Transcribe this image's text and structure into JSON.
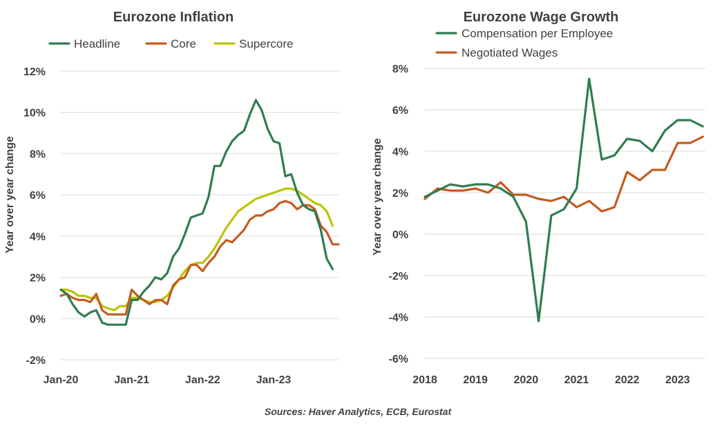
{
  "colors": {
    "green": "#2e7d4f",
    "orange": "#c55a1e",
    "lime": "#b9c400",
    "grid": "#d9d9d9",
    "text": "#404040"
  },
  "source": "Sources: Haver Analytics, ECB, Eurostat",
  "chart_data": [
    {
      "type": "line",
      "title": "Eurozone Inflation",
      "ylabel": "Year over year change",
      "xlabel": "",
      "ylim": [
        -2,
        12
      ],
      "yticks": [
        -2,
        0,
        2,
        4,
        6,
        8,
        10,
        12
      ],
      "ytick_labels": [
        "-2%",
        "0%",
        "2%",
        "4%",
        "6%",
        "8%",
        "10%",
        "12%"
      ],
      "x_ticks": [
        {
          "label": "Jan-20",
          "x": 0
        },
        {
          "label": "Jan-21",
          "x": 12
        },
        {
          "label": "Jan-22",
          "x": 24
        },
        {
          "label": "Jan-23",
          "x": 36
        }
      ],
      "x_unit": "months since Jan-20",
      "xlim": [
        0,
        47
      ],
      "grid": true,
      "legend": "top",
      "series": [
        {
          "name": "Headline",
          "color": "#2e7d4f",
          "x": [
            0,
            1,
            2,
            3,
            4,
            5,
            6,
            7,
            8,
            9,
            10,
            11,
            12,
            13,
            14,
            15,
            16,
            17,
            18,
            19,
            20,
            21,
            22,
            23,
            24,
            25,
            26,
            27,
            28,
            29,
            30,
            31,
            32,
            33,
            34,
            35,
            36,
            37,
            38,
            39,
            40,
            41,
            42,
            43,
            44,
            45,
            46
          ],
          "values": [
            1.4,
            1.2,
            0.7,
            0.3,
            0.1,
            0.3,
            0.4,
            -0.2,
            -0.3,
            -0.3,
            -0.3,
            -0.3,
            0.9,
            0.9,
            1.3,
            1.6,
            2.0,
            1.9,
            2.2,
            3.0,
            3.4,
            4.1,
            4.9,
            5.0,
            5.1,
            5.9,
            7.4,
            7.4,
            8.1,
            8.6,
            8.9,
            9.1,
            9.9,
            10.6,
            10.1,
            9.2,
            8.6,
            8.5,
            6.9,
            7.0,
            6.1,
            5.5,
            5.3,
            5.2,
            4.3,
            2.9,
            2.4
          ]
        },
        {
          "name": "Core",
          "color": "#c55a1e",
          "x": [
            0,
            1,
            2,
            3,
            4,
            5,
            6,
            7,
            8,
            9,
            10,
            11,
            12,
            13,
            14,
            15,
            16,
            17,
            18,
            19,
            20,
            21,
            22,
            23,
            24,
            25,
            26,
            27,
            28,
            29,
            30,
            31,
            32,
            33,
            34,
            35,
            36,
            37,
            38,
            39,
            40,
            41,
            42,
            43,
            44,
            45,
            46,
            47
          ],
          "values": [
            1.1,
            1.2,
            1.0,
            0.9,
            0.9,
            0.8,
            1.2,
            0.4,
            0.2,
            0.2,
            0.2,
            0.2,
            1.4,
            1.1,
            0.9,
            0.7,
            0.9,
            0.9,
            0.7,
            1.6,
            1.9,
            2.0,
            2.6,
            2.6,
            2.3,
            2.7,
            3.0,
            3.5,
            3.8,
            3.7,
            4.0,
            4.3,
            4.8,
            5.0,
            5.0,
            5.2,
            5.3,
            5.6,
            5.7,
            5.6,
            5.3,
            5.5,
            5.5,
            5.3,
            4.5,
            4.2,
            3.6,
            3.6
          ]
        },
        {
          "name": "Supercore",
          "color": "#b9c400",
          "x": [
            0,
            1,
            2,
            3,
            4,
            5,
            6,
            7,
            8,
            9,
            10,
            11,
            12,
            13,
            14,
            15,
            16,
            17,
            18,
            19,
            20,
            21,
            22,
            23,
            24,
            25,
            26,
            27,
            28,
            29,
            30,
            31,
            32,
            33,
            34,
            35,
            36,
            37,
            38,
            39,
            40,
            41,
            42,
            43,
            44,
            45,
            46
          ],
          "values": [
            1.4,
            1.4,
            1.3,
            1.1,
            1.1,
            1.0,
            1.0,
            0.6,
            0.5,
            0.4,
            0.6,
            0.6,
            1.0,
            1.0,
            0.9,
            0.8,
            0.8,
            0.9,
            1.1,
            1.5,
            1.9,
            2.3,
            2.6,
            2.7,
            2.7,
            3.0,
            3.4,
            3.9,
            4.4,
            4.8,
            5.2,
            5.4,
            5.6,
            5.8,
            5.9,
            6.0,
            6.1,
            6.2,
            6.3,
            6.3,
            6.2,
            6.0,
            5.8,
            5.6,
            5.5,
            5.2,
            4.5
          ]
        }
      ]
    },
    {
      "type": "line",
      "title": "Eurozone Wage Growth",
      "ylabel": "Year over year change",
      "xlabel": "",
      "ylim": [
        -6,
        8
      ],
      "yticks": [
        -6,
        -4,
        -2,
        0,
        2,
        4,
        6,
        8
      ],
      "ytick_labels": [
        "-6%",
        "-4%",
        "-2%",
        "0%",
        "2%",
        "4%",
        "6%",
        "8%"
      ],
      "x_ticks": [
        {
          "label": "2018",
          "x": 2018
        },
        {
          "label": "2019",
          "x": 2019
        },
        {
          "label": "2020",
          "x": 2020
        },
        {
          "label": "2021",
          "x": 2021
        },
        {
          "label": "2022",
          "x": 2022
        },
        {
          "label": "2023",
          "x": 2023
        }
      ],
      "x_unit": "year (quarterly)",
      "xlim": [
        2018,
        2023.55
      ],
      "grid": true,
      "legend": "top-left",
      "series": [
        {
          "name": "Compensation per Employee",
          "color": "#2e7d4f",
          "x": [
            2018,
            2018.25,
            2018.5,
            2018.75,
            2019,
            2019.25,
            2019.5,
            2019.75,
            2020,
            2020.25,
            2020.5,
            2020.75,
            2021,
            2021.25,
            2021.5,
            2021.75,
            2022,
            2022.25,
            2022.5,
            2022.75,
            2023,
            2023.25,
            2023.5
          ],
          "values": [
            1.8,
            2.1,
            2.4,
            2.3,
            2.4,
            2.4,
            2.2,
            1.8,
            0.6,
            -4.2,
            0.9,
            1.2,
            2.2,
            7.5,
            3.6,
            3.8,
            4.6,
            4.5,
            4.0,
            5.0,
            5.5,
            5.5,
            5.2
          ]
        },
        {
          "name": "Negotiated Wages",
          "color": "#c55a1e",
          "x": [
            2018,
            2018.25,
            2018.5,
            2018.75,
            2019,
            2019.25,
            2019.5,
            2019.75,
            2020,
            2020.25,
            2020.5,
            2020.75,
            2021,
            2021.25,
            2021.5,
            2021.75,
            2022,
            2022.25,
            2022.5,
            2022.75,
            2023,
            2023.25,
            2023.5
          ],
          "values": [
            1.7,
            2.2,
            2.1,
            2.1,
            2.2,
            2.0,
            2.5,
            1.9,
            1.9,
            1.7,
            1.6,
            1.8,
            1.3,
            1.6,
            1.1,
            1.3,
            3.0,
            2.6,
            3.1,
            3.1,
            4.4,
            4.4,
            4.7
          ]
        }
      ]
    }
  ]
}
